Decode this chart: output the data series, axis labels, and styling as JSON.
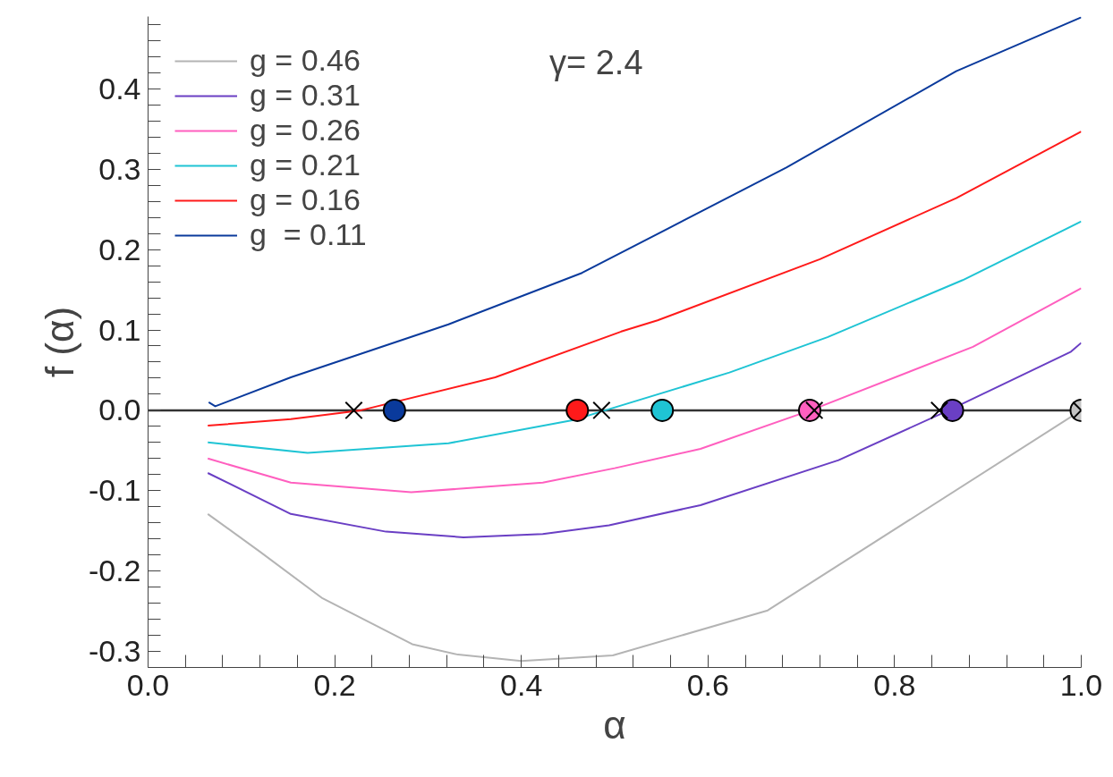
{
  "chart_data": {
    "type": "line",
    "xlabel": "α",
    "ylabel": "f (α)",
    "annotations": [
      "γ= 2.4"
    ],
    "xlim": [
      0.0,
      1.0
    ],
    "xticks": [
      {
        "value": 0.0,
        "label": "0.0"
      },
      {
        "value": 0.04,
        "label": null
      },
      {
        "value": 0.08,
        "label": null
      },
      {
        "value": 0.12,
        "label": null
      },
      {
        "value": 0.16,
        "label": null
      },
      0.2,
      {
        "value": 0.24,
        "label": null
      },
      {
        "value": 0.28,
        "label": null
      },
      {
        "value": 0.32,
        "label": null
      },
      {
        "value": 0.36,
        "label": null
      },
      0.4,
      {
        "value": 0.44,
        "label": null
      },
      {
        "value": 0.48,
        "label": null
      },
      {
        "value": 0.52,
        "label": null
      },
      {
        "value": 0.56,
        "label": null
      },
      0.6,
      {
        "value": 0.64,
        "label": null
      },
      {
        "value": 0.68,
        "label": null
      },
      {
        "value": 0.72,
        "label": null
      },
      {
        "value": 0.76,
        "label": null
      },
      0.8,
      {
        "value": 0.84,
        "label": null
      },
      {
        "value": 0.88,
        "label": null
      },
      {
        "value": 0.92,
        "label": null
      },
      {
        "value": 0.96,
        "label": null
      },
      {
        "value": 1.0,
        "label": "1.0"
      }
    ],
    "ylim": [
      -0.32,
      0.49
    ],
    "yticks": [
      -0.3,
      {
        "value": -0.28,
        "label": null
      },
      {
        "value": -0.26,
        "label": null
      },
      {
        "value": -0.24,
        "label": null
      },
      {
        "value": -0.22,
        "label": null
      },
      -0.2,
      {
        "value": -0.18,
        "label": null
      },
      {
        "value": -0.16,
        "label": null
      },
      {
        "value": -0.14,
        "label": null
      },
      {
        "value": -0.12,
        "label": null
      },
      -0.1,
      {
        "value": -0.08,
        "label": null
      },
      {
        "value": -0.06,
        "label": null
      },
      {
        "value": -0.04,
        "label": null
      },
      {
        "value": -0.02,
        "label": null
      },
      {
        "value": 0.0,
        "label": "0.0"
      },
      {
        "value": 0.02,
        "label": null
      },
      {
        "value": 0.04,
        "label": null
      },
      {
        "value": 0.06,
        "label": null
      },
      {
        "value": 0.08,
        "label": null
      },
      0.1,
      {
        "value": 0.12,
        "label": null
      },
      {
        "value": 0.14,
        "label": null
      },
      {
        "value": 0.16,
        "label": null
      },
      {
        "value": 0.18,
        "label": null
      },
      0.2,
      {
        "value": 0.22,
        "label": null
      },
      {
        "value": 0.24,
        "label": null
      },
      {
        "value": 0.26,
        "label": null
      },
      {
        "value": 0.28,
        "label": null
      },
      0.3,
      {
        "value": 0.32,
        "label": null
      },
      {
        "value": 0.34,
        "label": null
      },
      {
        "value": 0.36,
        "label": null
      },
      {
        "value": 0.38,
        "label": null
      },
      0.4,
      {
        "value": 0.42,
        "label": null
      },
      {
        "value": 0.44,
        "label": null
      },
      {
        "value": 0.46,
        "label": null
      },
      {
        "value": 0.48,
        "label": null
      }
    ],
    "grid": false,
    "legend": "top left",
    "marker": "none",
    "line_style": "solid",
    "ref_lines": [
      {
        "axis": "y",
        "value": 0.0,
        "color": "#333333",
        "line_style": "solid"
      }
    ],
    "series": [
      {
        "name": "g = 0.46",
        "color": "#b4b4b4",
        "x": [
          0.064,
          0.12,
          0.187,
          0.283,
          0.332,
          0.4,
          0.498,
          0.664,
          1.0
        ],
        "values": [
          -0.129,
          -0.176,
          -0.234,
          -0.291,
          -0.304,
          -0.312,
          -0.305,
          -0.249,
          0.0
        ]
      },
      {
        "name": "g = 0.31",
        "color": "#6a3fc4",
        "x": [
          0.064,
          0.153,
          0.255,
          0.338,
          0.423,
          0.494,
          0.592,
          0.74,
          0.858,
          0.989,
          1.0
        ],
        "values": [
          -0.078,
          -0.129,
          -0.151,
          -0.158,
          -0.154,
          -0.143,
          -0.118,
          -0.062,
          0.0,
          0.073,
          0.084
        ]
      },
      {
        "name": "g = 0.26",
        "color": "#ff5fbf",
        "x": [
          0.064,
          0.153,
          0.282,
          0.423,
          0.5,
          0.592,
          0.71,
          0.884,
          1.0
        ],
        "values": [
          -0.06,
          -0.09,
          -0.102,
          -0.09,
          -0.072,
          -0.048,
          0.0,
          0.079,
          0.152
        ]
      },
      {
        "name": "g = 0.21",
        "color": "#1fc4d4",
        "x": [
          0.064,
          0.171,
          0.322,
          0.456,
          0.49,
          0.623,
          0.728,
          0.873,
          1.0
        ],
        "values": [
          -0.04,
          -0.053,
          -0.041,
          -0.012,
          0.0,
          0.047,
          0.091,
          0.162,
          0.235
        ]
      },
      {
        "name": "g = 0.16",
        "color": "#ff1a1a",
        "x": [
          0.064,
          0.153,
          0.228,
          0.372,
          0.507,
          0.546,
          0.72,
          0.866,
          1.0
        ],
        "values": [
          -0.019,
          -0.011,
          0.0,
          0.041,
          0.098,
          0.112,
          0.188,
          0.264,
          0.347
        ]
      },
      {
        "name": "g  = 0.11",
        "color": "#0a3a9c",
        "x": [
          0.065,
          0.072,
          0.153,
          0.322,
          0.465,
          0.684,
          0.866,
          1.0
        ],
        "values": [
          0.01,
          0.005,
          0.041,
          0.107,
          0.171,
          0.302,
          0.422,
          0.489
        ]
      },
      {
        "type": "scatter",
        "marker": "circle",
        "x": [
          0.264,
          0.46,
          0.551,
          0.709,
          0.862,
          1.0
        ],
        "values": [
          0.0,
          0.0,
          0.0,
          0.0,
          0.0,
          0.0
        ],
        "colors": [
          "#0a3a9c",
          "#ff1a1a",
          "#1fc4d4",
          "#ff5fbf",
          "#6a3fc4",
          "#c4c4c4"
        ]
      },
      {
        "type": "scatter",
        "marker": "cross",
        "color": "#000000",
        "x": [
          0.2205,
          0.486,
          0.714,
          0.848,
          1.0
        ],
        "values": [
          0.0,
          0.0,
          0.0,
          0.0,
          0.0
        ]
      }
    ]
  }
}
